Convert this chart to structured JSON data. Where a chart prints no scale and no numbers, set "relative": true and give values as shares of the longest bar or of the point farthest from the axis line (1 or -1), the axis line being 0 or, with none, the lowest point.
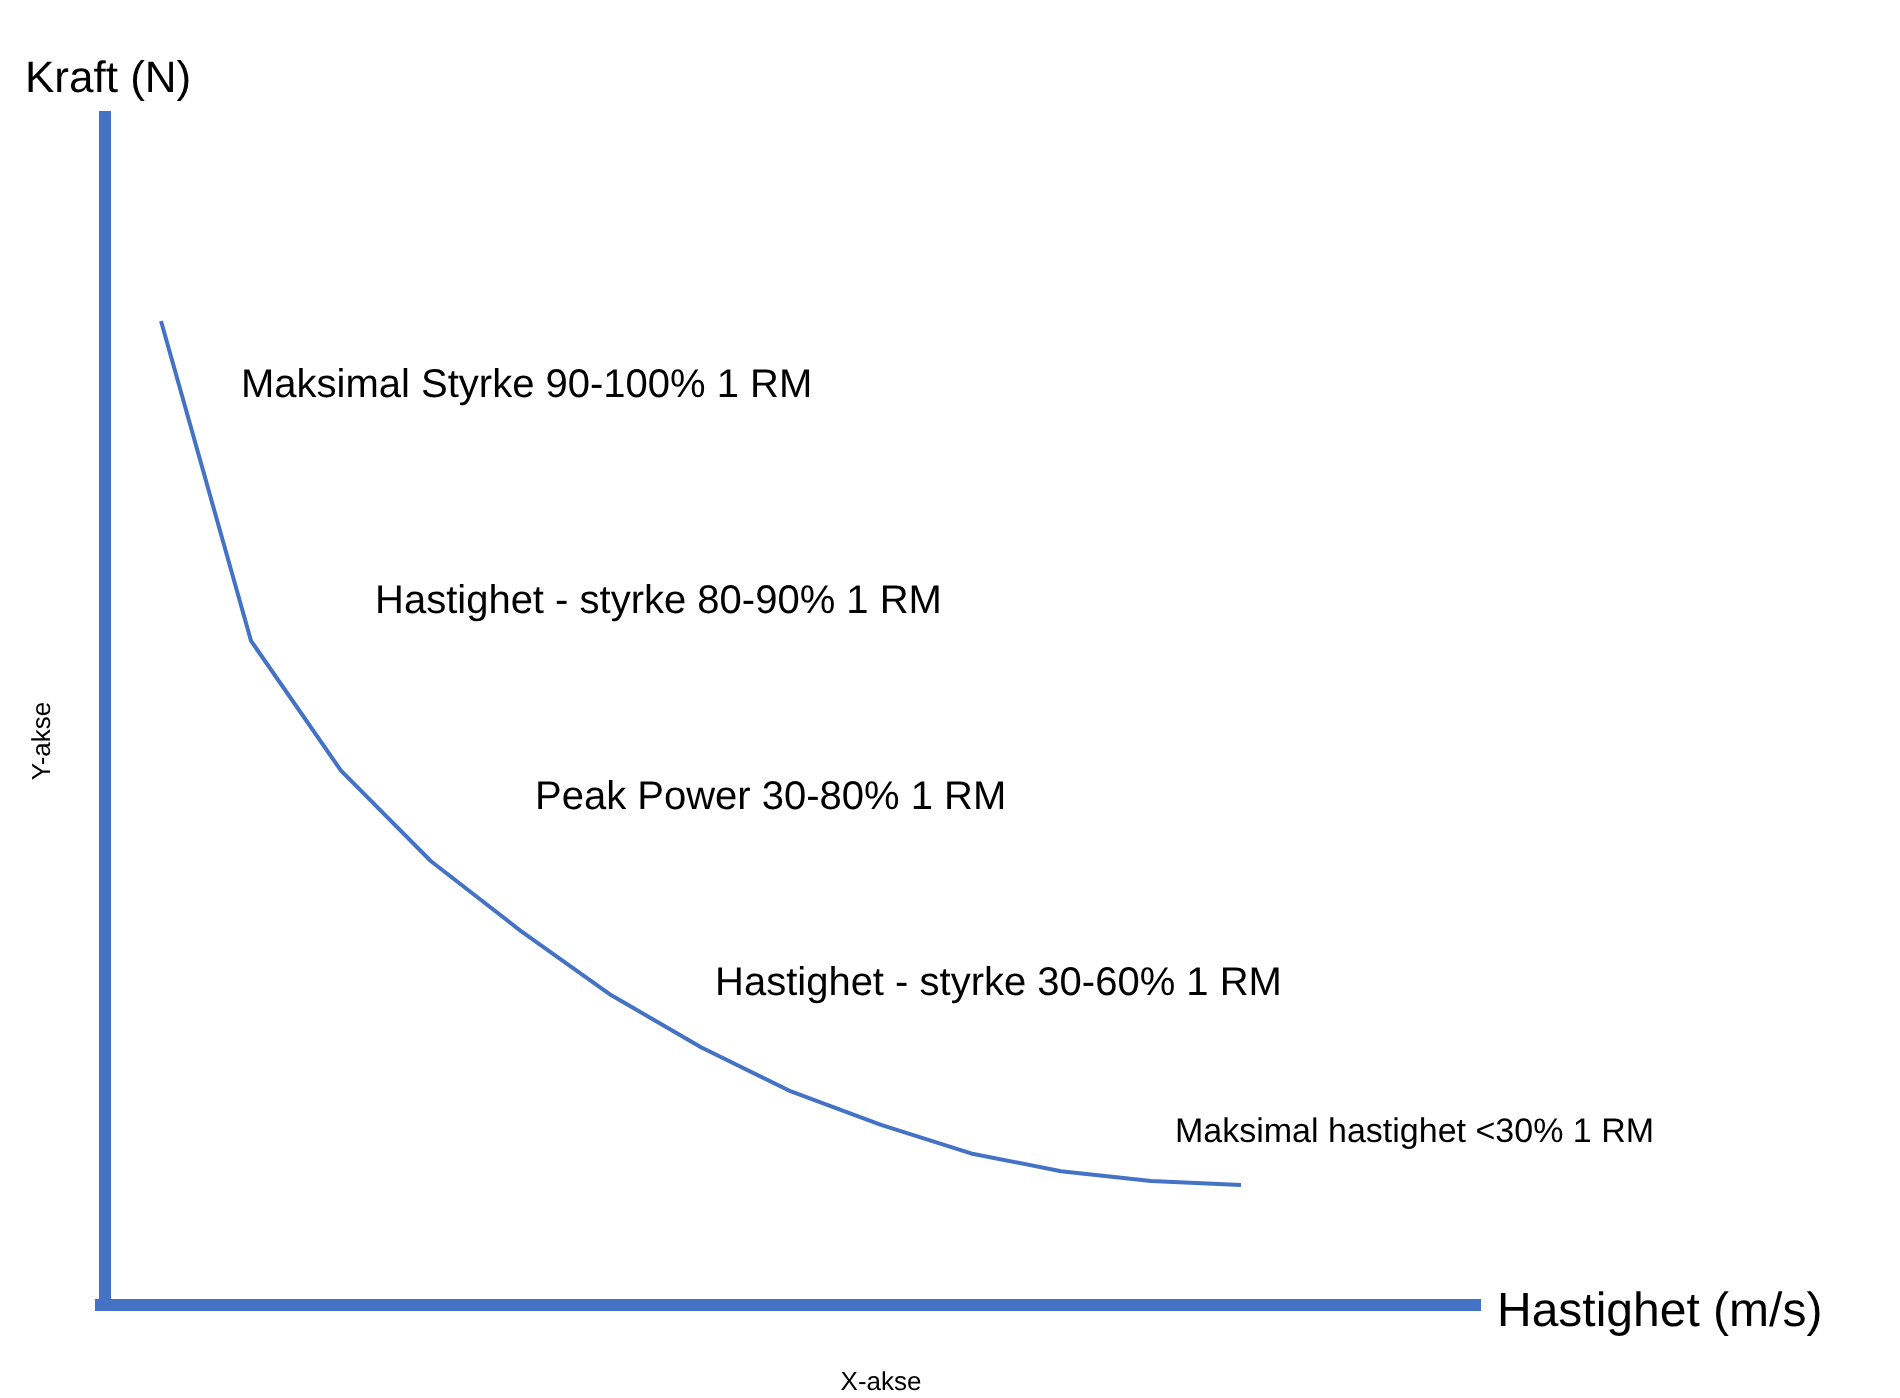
{
  "chart_data": {
    "type": "line",
    "relative": true,
    "xlabel": "Hastighet (m/s)",
    "ylabel": "Kraft (N)",
    "categories": [
      null,
      null,
      null,
      null,
      null,
      null,
      null,
      null,
      null,
      null,
      null,
      null,
      null
    ],
    "series": [
      {
        "color": "#4472c4",
        "values": [
          1.0,
          0.675,
          0.543,
          0.451,
          0.38,
          0.315,
          0.262,
          0.217,
          0.183,
          0.154,
          0.136,
          0.126,
          0.122
        ]
      }
    ],
    "annotations": [
      "Maksimal Styrke 90-100% 1 RM",
      "Hastighet - styrke 80-90% 1 RM",
      "Peak Power 30-80% 1 RM",
      "Hastighet - styrke 30-60% 1 RM",
      "Maksimal hastighet <30% 1 RM",
      "Y-akse",
      "X-akse"
    ],
    "marker": "none",
    "line_style": "solid"
  }
}
